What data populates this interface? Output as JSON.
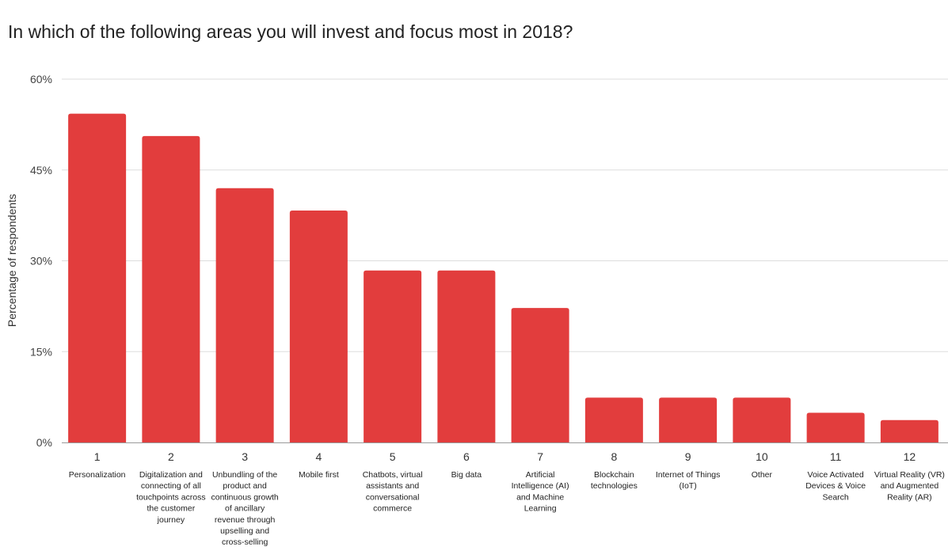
{
  "chart_data": {
    "type": "bar",
    "title": "In which of the following areas you will invest and focus most in 2018?",
    "ylabel": "Percentage of respondents",
    "xlabel": "",
    "ylim": [
      0,
      60
    ],
    "yticks": [
      "0%",
      "15%",
      "30%",
      "45%",
      "60%"
    ],
    "ytick_values": [
      0,
      15,
      30,
      45,
      60
    ],
    "grid": true,
    "bar_color": "#e23d3d",
    "tick_numbers": [
      "1",
      "2",
      "3",
      "4",
      "5",
      "6",
      "7",
      "8",
      "9",
      "10",
      "11",
      "12"
    ],
    "categories": [
      "Personalization",
      "Digitalization and connecting of all touchpoints across the customer journey",
      "Unbundling of the product and continuous growth of ancillary revenue through upselling and cross-selling",
      "Mobile first",
      "Chatbots, virtual assistants and conversational commerce",
      "Big data",
      "Artificial Intelligence (AI) and Machine Learning",
      "Blockchain technologies",
      "Internet of Things (IoT)",
      "Other",
      "Voice Activated Devices & Voice Search",
      "Virtual Reality (VR) and Augmented Reality (AR)"
    ],
    "category_label_lines": [
      [
        "Personalization"
      ],
      [
        "Digitalization and",
        "connecting of all",
        "touchpoints across",
        "the customer",
        "journey"
      ],
      [
        "Unbundling of the",
        "product and",
        "continuous growth",
        "of ancillary",
        "revenue through",
        "upselling and",
        "cross-selling"
      ],
      [
        "Mobile first"
      ],
      [
        "Chatbots, virtual",
        "assistants and",
        "conversational",
        "commerce"
      ],
      [
        "Big data"
      ],
      [
        "Artificial",
        "Intelligence (AI)",
        "and Machine",
        "Learning"
      ],
      [
        "Blockchain",
        "technologies"
      ],
      [
        "Internet of Things",
        "(IoT)"
      ],
      [
        "Other"
      ],
      [
        "Voice Activated",
        "Devices & Voice",
        "Search"
      ],
      [
        "Virtual Reality (VR)",
        "and Augmented",
        "Reality (AR)"
      ]
    ],
    "values": [
      54.3,
      50.6,
      42.0,
      38.3,
      28.4,
      28.4,
      22.2,
      7.4,
      7.4,
      7.4,
      4.9,
      3.7
    ]
  }
}
